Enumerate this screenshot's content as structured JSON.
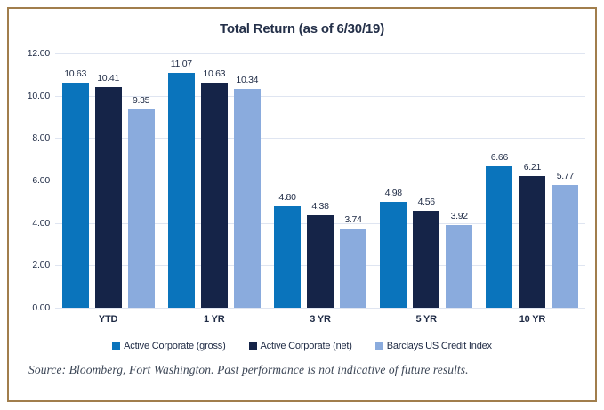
{
  "title": "Total Return (as of 6/30/19)",
  "source_note": "Source: Bloomberg, Fort Washington. Past performance is not indicative of future results.",
  "colors": {
    "frame_border": "#a17e4c",
    "gridline": "#dfe5f1",
    "text": "#1e2a44",
    "series_gross": "#0a74bc",
    "series_net": "#152448",
    "series_index": "#8aabdd"
  },
  "chart_data": {
    "type": "bar",
    "title": "Total Return (as of 6/30/19)",
    "categories": [
      "YTD",
      "1 YR",
      "3 YR",
      "5 YR",
      "10 YR"
    ],
    "series": [
      {
        "name": "Active Corporate (gross)",
        "color": "#0a74bc",
        "values": [
          10.63,
          11.07,
          4.8,
          4.98,
          6.66
        ]
      },
      {
        "name": "Active Corporate (net)",
        "color": "#152448",
        "values": [
          10.41,
          10.63,
          4.38,
          4.56,
          6.21
        ]
      },
      {
        "name": "Barclays US Credit Index",
        "color": "#8aabdd",
        "values": [
          9.35,
          10.34,
          3.74,
          3.92,
          5.77
        ]
      }
    ],
    "ylim": [
      0,
      12
    ],
    "ytick_labels": [
      "0.00",
      "2.00",
      "4.00",
      "6.00",
      "8.00",
      "10.00",
      "12.00"
    ],
    "grid": true,
    "legend_position": "bottom",
    "value_labels_decimals": 2
  }
}
